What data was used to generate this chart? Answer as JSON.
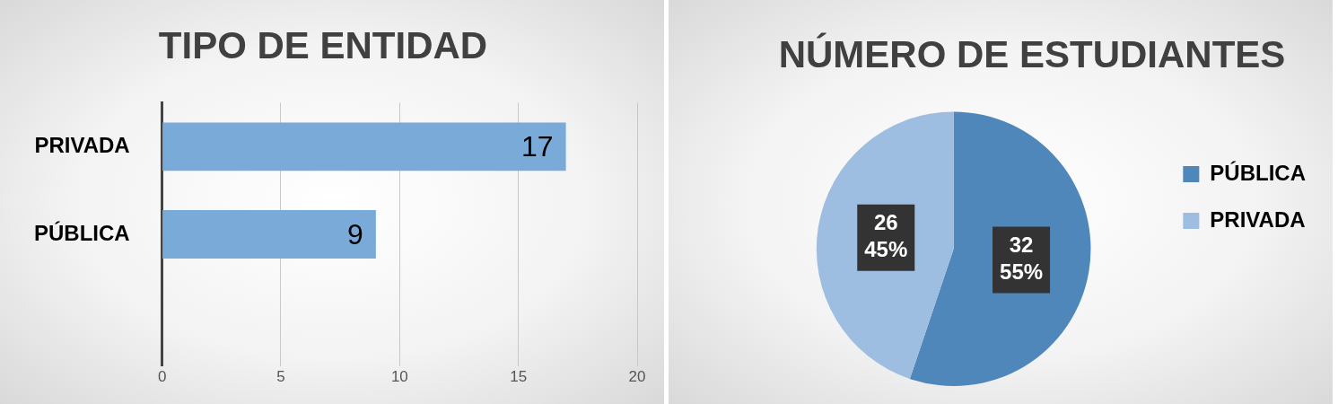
{
  "chart_data": [
    {
      "type": "bar",
      "title": "TIPO DE ENTIDAD",
      "orientation": "horizontal",
      "categories": [
        "PRIVADA",
        "PÚBLICA",
        null
      ],
      "values": [
        17,
        9,
        null
      ],
      "color": "#7aaad8",
      "xlim": [
        0,
        20
      ],
      "xticks": [
        0,
        5,
        10,
        15,
        20
      ],
      "grid": "x",
      "data_labels": true,
      "legend": false
    },
    {
      "type": "pie",
      "title": "NÚMERO DE ESTUDIANTES",
      "categories": [
        "PÚBLICA",
        "PRIVADA"
      ],
      "values": [
        32,
        26
      ],
      "colors": [
        "#4f87bb",
        "#9ebee1"
      ],
      "value_labels": [
        "32\n55%",
        "26\n45%"
      ],
      "legend": "right"
    }
  ]
}
